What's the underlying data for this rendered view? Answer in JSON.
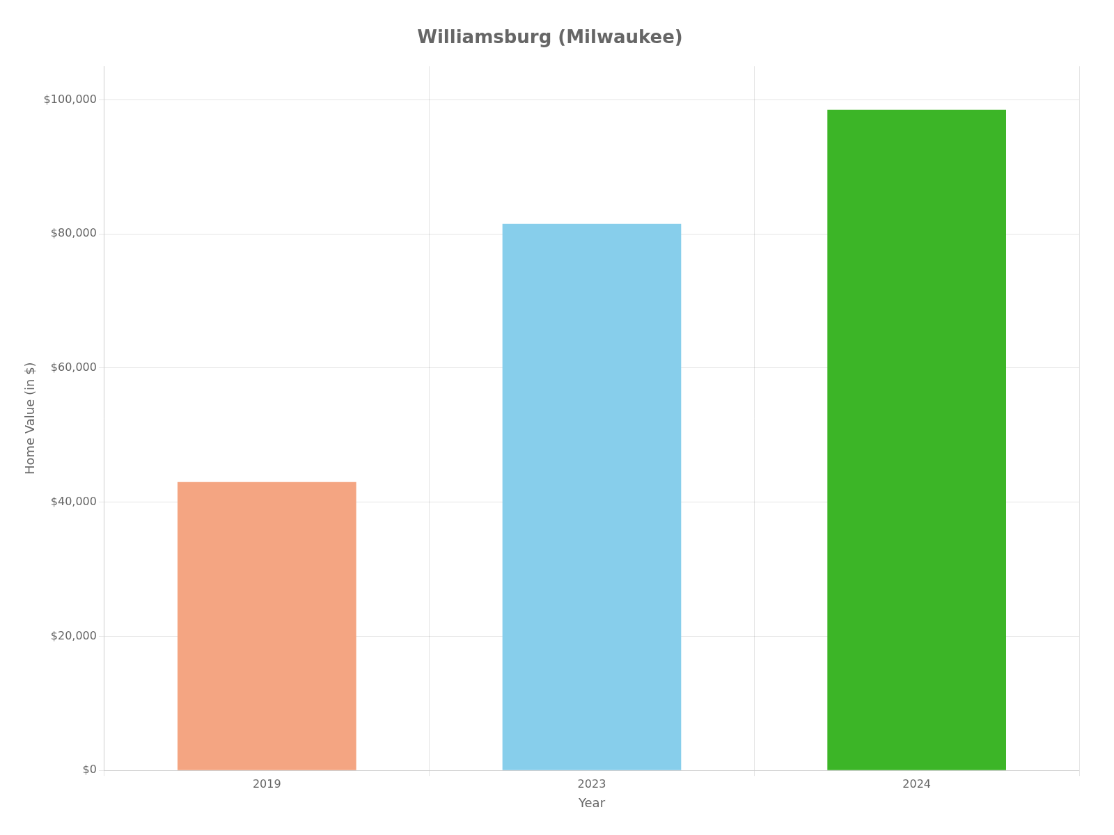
{
  "chart_data": {
    "type": "bar",
    "title": "Williamsburg (Milwaukee)",
    "categories": [
      "2019",
      "2023",
      "2024"
    ],
    "values": [
      43000,
      81500,
      98500
    ],
    "colors": [
      "#F4A582",
      "#87CEEB",
      "#3CB527"
    ],
    "xlabel": "Year",
    "ylabel": "Home Value (in $)",
    "ylim": [
      0,
      105000
    ],
    "yticks": [
      {
        "value": 0,
        "label": "$0"
      },
      {
        "value": 20000,
        "label": "$20,000"
      },
      {
        "value": 40000,
        "label": "$40,000"
      },
      {
        "value": 60000,
        "label": "$60,000"
      },
      {
        "value": 80000,
        "label": "$80,000"
      },
      {
        "value": 100000,
        "label": "$100,000"
      }
    ],
    "grid": true
  }
}
